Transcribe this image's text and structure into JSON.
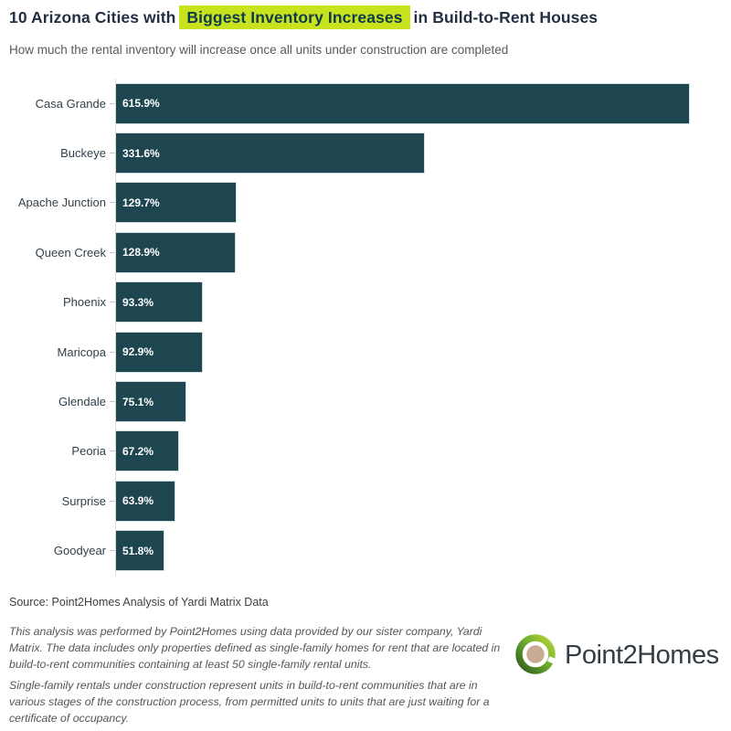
{
  "header": {
    "title_prefix": "10 Arizona Cities with",
    "title_highlight": "Biggest Inventory Increases",
    "title_suffix": "in Build-to-Rent Houses",
    "subtitle": "How much the rental inventory will increase once all units under construction are completed"
  },
  "chart_data": {
    "type": "bar",
    "orientation": "horizontal",
    "title": "10 Arizona Cities with Biggest Inventory Increases in Build-to-Rent Houses",
    "subtitle": "How much the rental inventory will increase once all units under construction are completed",
    "categories": [
      "Casa Grande",
      "Buckeye",
      "Apache Junction",
      "Queen Creek",
      "Phoenix",
      "Maricopa",
      "Glendale",
      "Peoria",
      "Surprise",
      "Goodyear"
    ],
    "values": [
      615.9,
      331.6,
      129.7,
      128.9,
      93.3,
      92.9,
      75.1,
      67.2,
      63.9,
      51.8
    ],
    "value_labels": [
      "615.9%",
      "331.6%",
      "129.7%",
      "128.9%",
      "93.3%",
      "92.9%",
      "75.1%",
      "67.2%",
      "63.9%",
      "51.8%"
    ],
    "xlabel": "",
    "ylabel": "",
    "xlim": [
      0,
      630
    ],
    "grid": false,
    "legend": false,
    "unit": "%"
  },
  "footer": {
    "source": "Source: Point2Homes Analysis of Yardi Matrix Data",
    "note1": "This analysis was performed by Point2Homes using data provided by our sister company, Yardi Matrix. The data includes only properties defined as single-family homes for rent that are located in build-to-rent communities containing at least 50 single-family rental units.",
    "note2": "Single-family rentals under construction represent units in build-to-rent communities that are in various stages of the construction process, from permitted units to units that are just waiting for a certificate of occupancy."
  },
  "logo": {
    "text": "Point2Homes"
  },
  "colors": {
    "bar": "#1e4651",
    "highlight_bg": "#c8e31e",
    "highlight_text": "#0f3a4c",
    "title_text": "#223042",
    "bar_value_text": "#ffffff",
    "logo_green_light": "#b8d435",
    "logo_green_dark": "#2f5b1e",
    "logo_center_tan": "#c7ab93"
  }
}
